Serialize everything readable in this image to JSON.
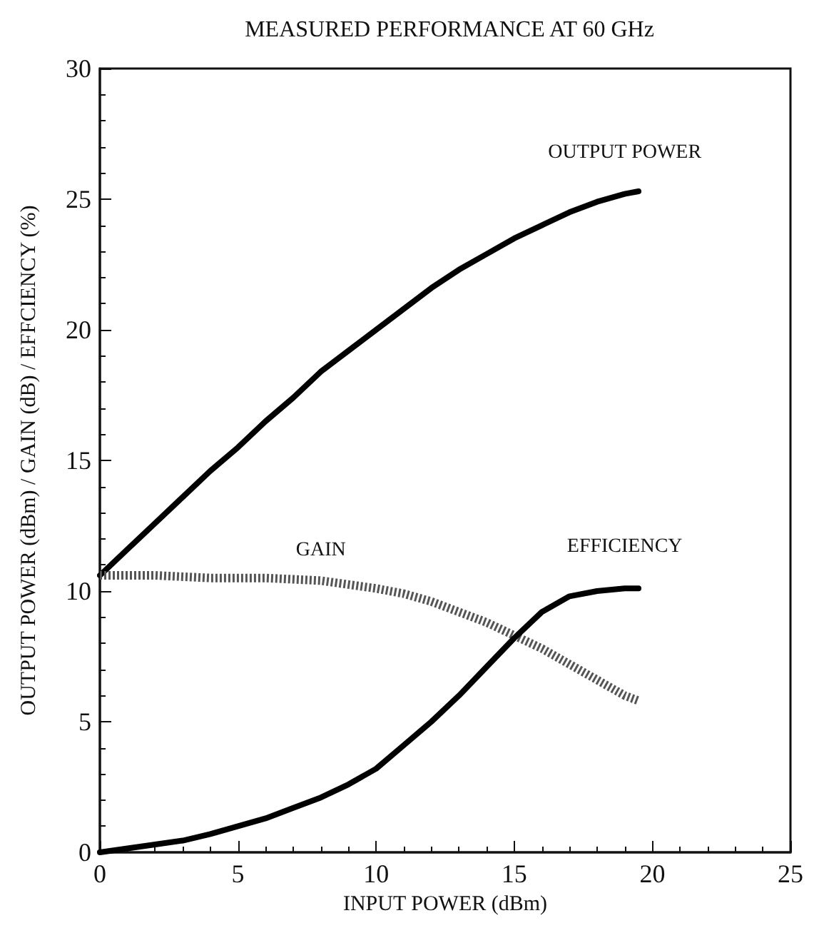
{
  "chart_data": {
    "type": "line",
    "title": "MEASURED PERFORMANCE AT 60 GHz",
    "xlabel": "INPUT POWER (dBm)",
    "ylabel": "OUTPUT POWER (dBm) / GAIN (dB) / EFFCIENCY (%)",
    "xlim": [
      0,
      25
    ],
    "xticks": [
      0,
      5,
      10,
      15,
      20,
      25
    ],
    "ylim": [
      0,
      30
    ],
    "yticks": [
      0,
      5,
      10,
      15,
      20,
      25,
      30
    ],
    "grid": false,
    "legend": false,
    "marker": "none",
    "line_style": "solid",
    "series": [
      {
        "name": "OUTPUT POWER",
        "color": "#000000",
        "x": [
          0,
          1,
          2,
          3,
          4,
          5,
          6,
          7,
          8,
          9,
          10,
          11,
          12,
          13,
          14,
          15,
          16,
          17,
          18,
          19,
          19.5
        ],
        "values": [
          10.6,
          11.6,
          12.6,
          13.6,
          14.6,
          15.5,
          16.5,
          17.4,
          18.4,
          19.2,
          20.0,
          20.8,
          21.6,
          22.3,
          22.9,
          23.5,
          24.0,
          24.5,
          24.9,
          25.2,
          25.3
        ]
      },
      {
        "name": "GAIN",
        "color": "#555555",
        "line_style": "dotted",
        "x": [
          0,
          2,
          4,
          6,
          8,
          10,
          11,
          12,
          13,
          14,
          15,
          16,
          17,
          18,
          19,
          19.5
        ],
        "values": [
          10.6,
          10.6,
          10.5,
          10.5,
          10.4,
          10.1,
          9.9,
          9.6,
          9.2,
          8.8,
          8.3,
          7.8,
          7.2,
          6.6,
          6.0,
          5.8
        ]
      },
      {
        "name": "EFFICIENCY",
        "color": "#000000",
        "x": [
          0,
          1,
          2,
          3,
          4,
          5,
          6,
          7,
          8,
          9,
          10,
          11,
          12,
          13,
          14,
          15,
          16,
          17,
          18,
          19,
          19.5
        ],
        "values": [
          0,
          0.15,
          0.3,
          0.45,
          0.7,
          1.0,
          1.3,
          1.7,
          2.1,
          2.6,
          3.2,
          4.1,
          5.0,
          6.0,
          7.1,
          8.2,
          9.2,
          9.8,
          10.0,
          10.1,
          10.1
        ]
      }
    ]
  }
}
